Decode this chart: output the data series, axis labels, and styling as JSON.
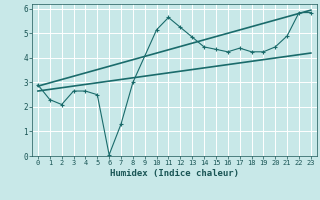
{
  "xlabel": "Humidex (Indice chaleur)",
  "bg_color": "#c8e8e8",
  "grid_color": "#b8d8d8",
  "line_color": "#1a6b6b",
  "xlim": [
    -0.5,
    23.5
  ],
  "ylim": [
    0,
    6.2
  ],
  "xticks": [
    0,
    1,
    2,
    3,
    4,
    5,
    6,
    7,
    8,
    9,
    10,
    11,
    12,
    13,
    14,
    15,
    16,
    17,
    18,
    19,
    20,
    21,
    22,
    23
  ],
  "yticks": [
    0,
    1,
    2,
    3,
    4,
    5,
    6
  ],
  "line1_x": [
    0,
    1,
    2,
    3,
    4,
    5,
    6,
    7,
    8,
    10,
    11,
    12,
    13,
    14,
    15,
    16,
    17,
    18,
    19,
    20,
    21,
    22,
    23
  ],
  "line1_y": [
    2.9,
    2.3,
    2.1,
    2.65,
    2.65,
    2.5,
    0.05,
    1.3,
    3.0,
    5.15,
    5.65,
    5.25,
    4.85,
    4.45,
    4.35,
    4.25,
    4.4,
    4.25,
    4.25,
    4.45,
    4.9,
    5.85,
    5.85
  ],
  "line2_x": [
    0,
    23
  ],
  "line2_y": [
    2.85,
    5.95
  ],
  "line3_x": [
    0,
    23
  ],
  "line3_y": [
    2.65,
    4.2
  ]
}
